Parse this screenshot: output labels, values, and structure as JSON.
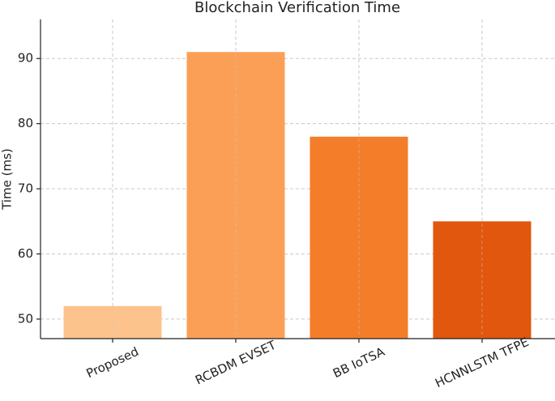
{
  "chart_data": {
    "type": "bar",
    "title": "Blockchain Verification Time",
    "y_label": "Time (ms)",
    "categories": [
      "Proposed",
      "RCBDM EVSET",
      "BB IoTSA",
      "HCNNLSTM TFPE"
    ],
    "values": [
      52,
      91,
      78,
      65
    ],
    "colors": [
      "#fdc38c",
      "#fb9f57",
      "#f47d2a",
      "#e1570d"
    ],
    "ylim": [
      47,
      96
    ],
    "yticks": [
      50,
      60,
      70,
      80,
      90
    ],
    "grid": true
  }
}
